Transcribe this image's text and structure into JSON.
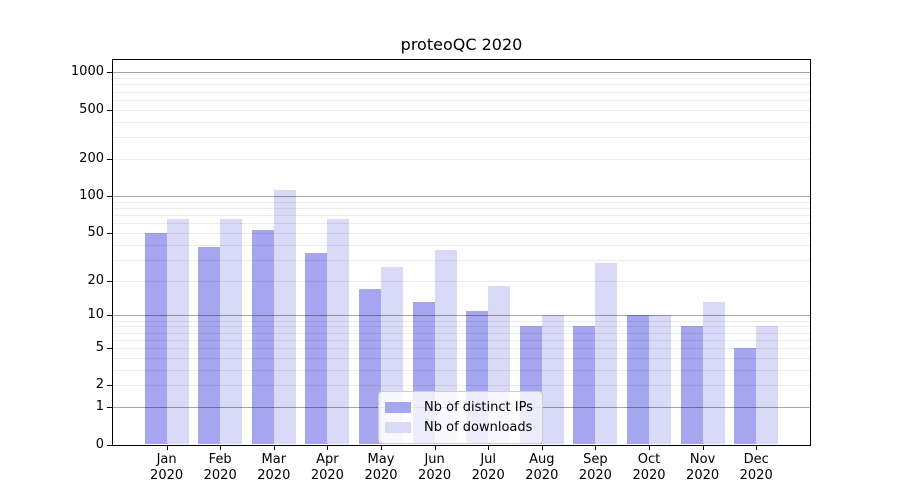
{
  "title": "proteoQC 2020",
  "chart_data": {
    "type": "bar",
    "title": "proteoQC 2020",
    "scale": "log1p",
    "grid": "horizontal",
    "legend_position": "lower center",
    "categories": [
      "Jan",
      "Feb",
      "Mar",
      "Apr",
      "May",
      "Jun",
      "Jul",
      "Aug",
      "Sep",
      "Oct",
      "Nov",
      "Dec"
    ],
    "x_second_line": "2020",
    "series": [
      {
        "name": "Nb of distinct IPs",
        "color": "#a5a5f0",
        "values": [
          50,
          38,
          53,
          34,
          17,
          13,
          11,
          8,
          8,
          10,
          8,
          5
        ]
      },
      {
        "name": "Nb of downloads",
        "color": "#d9d9f8",
        "values": [
          65,
          65,
          112,
          65,
          26,
          36,
          18,
          10,
          28,
          10,
          13,
          8
        ]
      }
    ],
    "y_ticks": [
      1000,
      500,
      200,
      100,
      50,
      20,
      10,
      5,
      2,
      1,
      0
    ],
    "major_gridlines": [
      1,
      10,
      100,
      1000
    ],
    "minor_gridlines": [
      2,
      3,
      4,
      5,
      6,
      7,
      8,
      9,
      20,
      30,
      40,
      50,
      60,
      70,
      80,
      90,
      200,
      300,
      400,
      500,
      600,
      700,
      800,
      900
    ],
    "ylim": [
      0,
      1270
    ]
  },
  "colors": {
    "spine": "#000000",
    "text": "#000000",
    "major_grid": "#a6a6a6",
    "minor_grid": "#ebebeb",
    "legend_border": "#cccccc",
    "legend_background": "#ffffff"
  }
}
